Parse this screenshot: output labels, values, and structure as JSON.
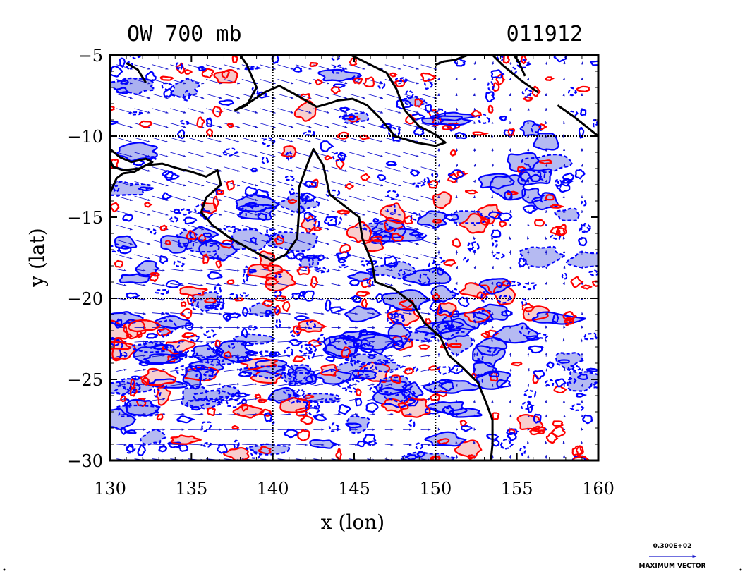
{
  "chart_data": {
    "type": "contour",
    "title": "OW 700 mb",
    "date_label": "011912",
    "xlabel": "x (lon)",
    "ylabel": "y (lat)",
    "xlim": [
      130,
      160
    ],
    "ylim": [
      -30,
      -5
    ],
    "x_ticks": [
      "130",
      "135",
      "140",
      "145",
      "150",
      "155",
      "160"
    ],
    "y_ticks": [
      "-5",
      "-10",
      "-15",
      "-20",
      "-25",
      "-30"
    ],
    "gridlines_lon": [
      140,
      150
    ],
    "gridlines_lat": [
      -10,
      -20
    ],
    "vector_legend_value": "0.300E+02",
    "vector_legend_label": "MAXIMUM VECTOR",
    "colors": {
      "positive_contour": "#ff0000",
      "positive_fill": "#f7c6c6",
      "negative_contour": "#0000ff",
      "negative_fill": "#a8aef0",
      "coastline": "#000000",
      "vectors": "#0000cc"
    },
    "coastline": [
      [
        [
          130,
          -13.5
        ],
        [
          130.4,
          -12.6
        ],
        [
          130.8,
          -12.3
        ],
        [
          131.5,
          -12.2
        ],
        [
          132.2,
          -11.8
        ],
        [
          133.2,
          -11.7
        ],
        [
          134.2,
          -12.0
        ],
        [
          135,
          -12.2
        ],
        [
          135.9,
          -12.5
        ],
        [
          136.6,
          -12.1
        ],
        [
          136.8,
          -13.0
        ],
        [
          135.9,
          -13.8
        ],
        [
          135.6,
          -14.7
        ],
        [
          136.3,
          -15.5
        ],
        [
          137.4,
          -16.3
        ],
        [
          138.3,
          -16.8
        ],
        [
          139.2,
          -17.3
        ],
        [
          140,
          -17.7
        ],
        [
          140.8,
          -17.3
        ],
        [
          141.5,
          -16.3
        ],
        [
          141.6,
          -14.8
        ],
        [
          141.6,
          -13.2
        ],
        [
          142.1,
          -11.8
        ],
        [
          142.5,
          -10.8
        ],
        [
          143.1,
          -11.8
        ],
        [
          143.5,
          -13.6
        ],
        [
          144.4,
          -14.3
        ],
        [
          145.3,
          -15.0
        ],
        [
          145.5,
          -16.3
        ],
        [
          146.1,
          -17.8
        ],
        [
          146.3,
          -19.0
        ],
        [
          147.4,
          -19.4
        ],
        [
          148.6,
          -20.3
        ],
        [
          149.3,
          -21.5
        ],
        [
          150.3,
          -22.4
        ],
        [
          150.8,
          -23.5
        ],
        [
          151.7,
          -24.3
        ],
        [
          152.6,
          -25.2
        ],
        [
          153.1,
          -26.4
        ],
        [
          153.5,
          -27.5
        ],
        [
          153.5,
          -29.0
        ],
        [
          153.4,
          -30
        ]
      ],
      [
        [
          130,
          -10.8
        ],
        [
          130.6,
          -11.3
        ],
        [
          131.3,
          -11.6
        ],
        [
          132.2,
          -11.4
        ],
        [
          132.6,
          -11.6
        ],
        [
          131.8,
          -12.0
        ],
        [
          130.8,
          -12.1
        ],
        [
          130.2,
          -11.9
        ],
        [
          130,
          -11.5
        ]
      ],
      [
        [
          138.0,
          -5.0
        ],
        [
          138.4,
          -5.6
        ],
        [
          139.0,
          -7.0
        ],
        [
          138.4,
          -8.1
        ],
        [
          137.7,
          -8.4
        ],
        [
          138.6,
          -7.9
        ],
        [
          139.5,
          -7.3
        ],
        [
          140.4,
          -6.9
        ],
        [
          141.5,
          -7.5
        ],
        [
          142.7,
          -8.2
        ],
        [
          143.4,
          -8.0
        ],
        [
          144.0,
          -7.8
        ],
        [
          144.9,
          -7.7
        ],
        [
          145.8,
          -8.1
        ],
        [
          146.6,
          -8.9
        ],
        [
          147.5,
          -10.0
        ],
        [
          148.8,
          -10.4
        ],
        [
          150.0,
          -10.6
        ],
        [
          150.6,
          -10.4
        ],
        [
          150.0,
          -9.9
        ],
        [
          149.0,
          -9.4
        ],
        [
          148.1,
          -8.4
        ],
        [
          147.6,
          -7.1
        ],
        [
          147.0,
          -6.1
        ],
        [
          146.0,
          -5.6
        ],
        [
          145.2,
          -5.2
        ],
        [
          144.8,
          -5.0
        ]
      ],
      [
        [
          152.0,
          -5.0
        ],
        [
          151.2,
          -5.3
        ],
        [
          150.5,
          -5.4
        ],
        [
          150.0,
          -5.6
        ]
      ],
      [
        [
          153.5,
          -5.0
        ],
        [
          154.1,
          -5.6
        ],
        [
          155.3,
          -6.6
        ],
        [
          156.3,
          -7.3
        ]
      ],
      [
        [
          154.8,
          -5.0
        ],
        [
          155.1,
          -5.4
        ],
        [
          155.5,
          -6.3
        ]
      ],
      [
        [
          157.5,
          -8.1
        ],
        [
          158.5,
          -8.8
        ],
        [
          159.5,
          -9.6
        ],
        [
          160,
          -10.0
        ]
      ],
      [
        [
          131.0,
          -5.5
        ],
        [
          131.7,
          -5.9
        ],
        [
          132.2,
          -6.7
        ]
      ]
    ]
  }
}
